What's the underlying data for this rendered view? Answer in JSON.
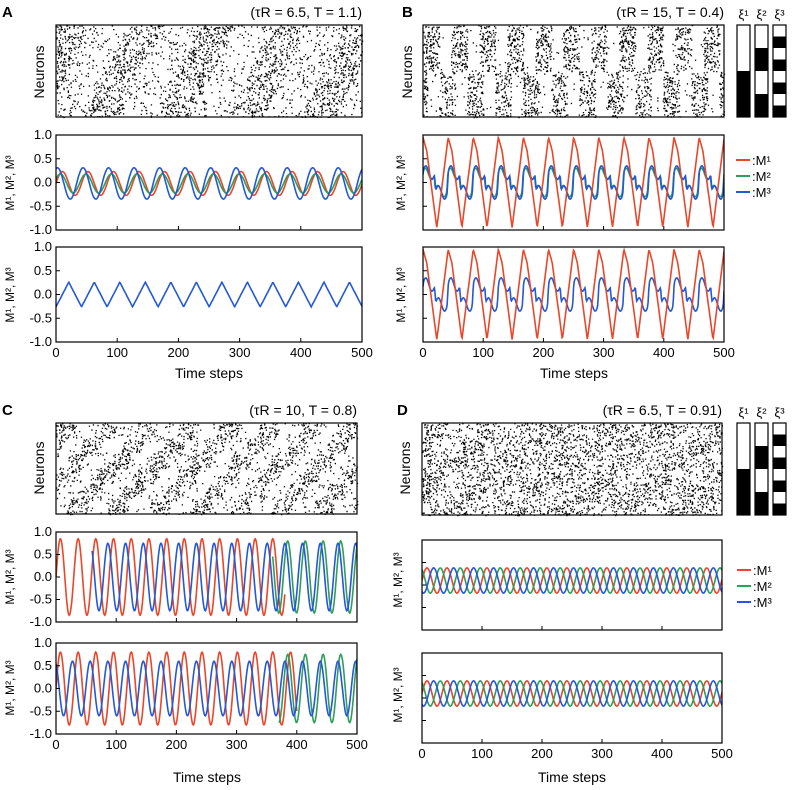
{
  "labels": {
    "neurons": "Neurons",
    "y_axis": "M¹, M², M³",
    "time_steps": "Time steps"
  },
  "legend": {
    "items": [
      {
        "label": ":M¹",
        "color": "#e8472a"
      },
      {
        "label": ":M²",
        "color": "#2e9e5a"
      },
      {
        "label": ":M³",
        "color": "#2458d6"
      }
    ]
  },
  "patterns": {
    "headers": [
      "ξ¹",
      "ξ²",
      "ξ³"
    ],
    "bits": [
      [
        1,
        1,
        1,
        1,
        0,
        0,
        0,
        0
      ],
      [
        1,
        1,
        0,
        0,
        1,
        1,
        0,
        0
      ],
      [
        1,
        0,
        1,
        0,
        1,
        0,
        1,
        0
      ]
    ]
  },
  "colors": {
    "M1": "#e8472a",
    "M2": "#2e9e5a",
    "M3": "#2458d6",
    "axis": "#000000"
  },
  "chart_data": [
    {
      "panel": "A",
      "title": "(τR = 6.5, T = 1.1)",
      "raster_mode": "wave",
      "legend": false,
      "patterns": false,
      "plots": [
        {
          "type": "line",
          "ylim": [
            -1.0,
            1.0
          ],
          "xlim": [
            0,
            500
          ],
          "yticks": [
            -1.0,
            -0.5,
            0.0,
            0.5,
            1.0
          ],
          "xticks": [],
          "xlabel": "",
          "series": [
            {
              "key": "M1",
              "amplitude": 0.25,
              "period": 41.7,
              "phase": 0.0,
              "offset": -0.02,
              "shape": "sin"
            },
            {
              "key": "M2",
              "amplitude": 0.2,
              "period": 41.7,
              "phase": 0.5,
              "offset": -0.02,
              "shape": "sin"
            },
            {
              "key": "M3",
              "amplitude": 0.33,
              "period": 41.7,
              "phase": 1.2,
              "offset": -0.02,
              "shape": "sin"
            }
          ]
        },
        {
          "type": "line",
          "ylim": [
            -1.0,
            1.0
          ],
          "xlim": [
            0,
            500
          ],
          "yticks": [
            -1.0,
            -0.5,
            0.0,
            0.5,
            1.0
          ],
          "xticks": [
            0,
            100,
            200,
            300,
            400,
            500
          ],
          "xlabel": "Time steps",
          "series": [
            {
              "key": "M3",
              "amplitude": 0.26,
              "period": 41.7,
              "phase": 0.0,
              "offset": 0.0,
              "shape": "tri"
            }
          ]
        }
      ]
    },
    {
      "panel": "B",
      "title": "(τR = 15, T = 0.4)",
      "raster_mode": "stripes",
      "legend": true,
      "patterns": true,
      "plots": [
        {
          "type": "line",
          "ylim": [
            -1.0,
            1.0
          ],
          "xlim": [
            0,
            500
          ],
          "yticks": [],
          "xticks": [],
          "xlabel": "",
          "series": [
            {
              "key": "M2",
              "amplitude": 0.3,
              "period": 41.7,
              "phase": 0.2,
              "offset": 0.0,
              "shape": "step"
            },
            {
              "key": "M3",
              "amplitude": 0.35,
              "period": 41.7,
              "phase": 0.1,
              "offset": 0.0,
              "shape": "step"
            },
            {
              "key": "M1",
              "amplitude": 0.95,
              "period": 41.7,
              "phase": 0.0,
              "offset": 0.0,
              "shape": "saw"
            }
          ]
        },
        {
          "type": "line",
          "ylim": [
            -1.0,
            1.0
          ],
          "xlim": [
            0,
            500
          ],
          "yticks": [],
          "xticks": [
            0,
            100,
            200,
            300,
            400,
            500
          ],
          "xlabel": "Time steps",
          "series": [
            {
              "key": "M3",
              "amplitude": 0.35,
              "period": 41.7,
              "phase": 0.1,
              "offset": 0.0,
              "shape": "step"
            },
            {
              "key": "M1",
              "amplitude": 0.95,
              "period": 41.7,
              "phase": 0.0,
              "offset": 0.0,
              "shape": "saw"
            }
          ]
        }
      ]
    },
    {
      "panel": "C",
      "title": "(τR = 10, T = 0.8)",
      "raster_mode": "checker",
      "legend": false,
      "patterns": false,
      "plots": [
        {
          "type": "line",
          "ylim": [
            -1.0,
            1.0
          ],
          "xlim": [
            0,
            500
          ],
          "yticks": [
            -1.0,
            -0.5,
            0.0,
            0.5,
            1.0
          ],
          "xticks": [],
          "xlabel": "",
          "series": [
            {
              "key": "M1",
              "amplitude": 0.85,
              "period": 29.4,
              "phase": 0.0,
              "offset": 0.0,
              "shape": "sin",
              "window": [
                0,
                380
              ]
            },
            {
              "key": "M2",
              "amplitude": 0.8,
              "period": 29.4,
              "phase": 1.0,
              "offset": 0.0,
              "shape": "sin",
              "window": [
                360,
                500
              ]
            },
            {
              "key": "M3",
              "amplitude": 0.75,
              "period": 29.4,
              "phase": 2.0,
              "offset": 0.0,
              "shape": "sin",
              "window": [
                60,
                500
              ]
            }
          ]
        },
        {
          "type": "line",
          "ylim": [
            -1.0,
            1.0
          ],
          "xlim": [
            0,
            500
          ],
          "yticks": [
            -1.0,
            -0.5,
            0.0,
            0.5,
            1.0
          ],
          "xticks": [
            0,
            100,
            200,
            300,
            400,
            500
          ],
          "xlabel": "Time steps",
          "series": [
            {
              "key": "M1",
              "amplitude": 0.8,
              "period": 29.4,
              "phase": 0.0,
              "offset": 0.0,
              "shape": "sin",
              "window": [
                0,
                400
              ]
            },
            {
              "key": "M2",
              "amplitude": 0.75,
              "period": 29.4,
              "phase": 1.0,
              "offset": 0.0,
              "shape": "sin",
              "window": [
                370,
                500
              ]
            },
            {
              "key": "M3",
              "amplitude": 0.6,
              "period": 29.4,
              "phase": 2.0,
              "offset": 0.0,
              "shape": "sin",
              "window": [
                0,
                500
              ]
            }
          ]
        }
      ]
    },
    {
      "panel": "D",
      "title": "(τR = 6.5, T = 0.91)",
      "raster_mode": "dense",
      "legend": true,
      "patterns": true,
      "plots": [
        {
          "type": "line",
          "ylim": [
            -1.0,
            1.0
          ],
          "xlim": [
            0,
            500
          ],
          "yticks": [],
          "xticks": [],
          "xlabel": "",
          "series": [
            {
              "key": "M1",
              "amplitude": 0.28,
              "period": 33.3,
              "phase": 0.0,
              "offset": 0.1,
              "shape": "sin"
            },
            {
              "key": "M2",
              "amplitude": 0.28,
              "period": 33.3,
              "phase": 2.1,
              "offset": 0.1,
              "shape": "sin"
            },
            {
              "key": "M3",
              "amplitude": 0.28,
              "period": 33.3,
              "phase": 4.2,
              "offset": 0.1,
              "shape": "sin"
            }
          ]
        },
        {
          "type": "line",
          "ylim": [
            -1.0,
            1.0
          ],
          "xlim": [
            0,
            500
          ],
          "yticks": [],
          "xticks": [
            0,
            100,
            200,
            300,
            400,
            500
          ],
          "xlabel": "Time steps",
          "series": [
            {
              "key": "M1",
              "amplitude": 0.28,
              "period": 33.3,
              "phase": 0.0,
              "offset": 0.1,
              "shape": "sin"
            },
            {
              "key": "M2",
              "amplitude": 0.28,
              "period": 33.3,
              "phase": 2.1,
              "offset": 0.1,
              "shape": "sin"
            },
            {
              "key": "M3",
              "amplitude": 0.28,
              "period": 33.3,
              "phase": 4.2,
              "offset": 0.1,
              "shape": "sin"
            }
          ]
        }
      ]
    }
  ]
}
